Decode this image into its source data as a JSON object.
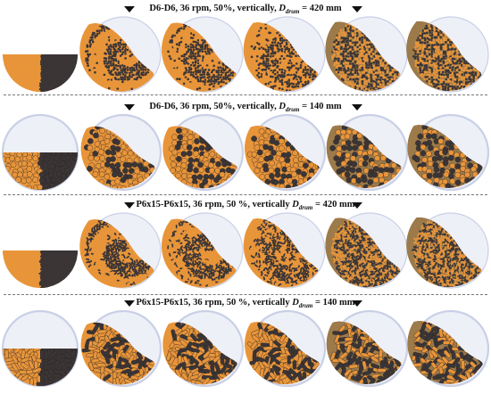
{
  "rows": [
    {
      "title_prefix": "D6-D6, 36 rpm, 50%, vertically, ",
      "d_main": "D",
      "d_sub": "drum",
      "title_suffix": " = 420 mm",
      "particle": "sphere",
      "scale": "large"
    },
    {
      "title_prefix": "D6-D6, 36 rpm, 50%, vertically, ",
      "d_main": "D",
      "d_sub": "drum",
      "title_suffix": " = 140 mm",
      "particle": "sphere",
      "scale": "small"
    },
    {
      "title_prefix": "P6x15-P6x15, 36 rpm, 50 %, vertically ",
      "d_main": "D",
      "d_sub": "drum",
      "title_suffix": " = 420 mm",
      "particle": "pellet",
      "scale": "large"
    },
    {
      "title_prefix": "P6x15-P6x15, 36 rpm, 50 %, vertically ",
      "d_main": "D",
      "d_sub": "drum",
      "title_suffix": " = 140 mm",
      "particle": "pellet",
      "scale": "small"
    }
  ],
  "colors": {
    "orange": "#e8953a",
    "dark": "#3b3536",
    "drum_fill": "#eef0f8",
    "drum_rim": "#c9d0e6",
    "mixed": "#9c7a4a"
  },
  "frames_per_row": 6
}
